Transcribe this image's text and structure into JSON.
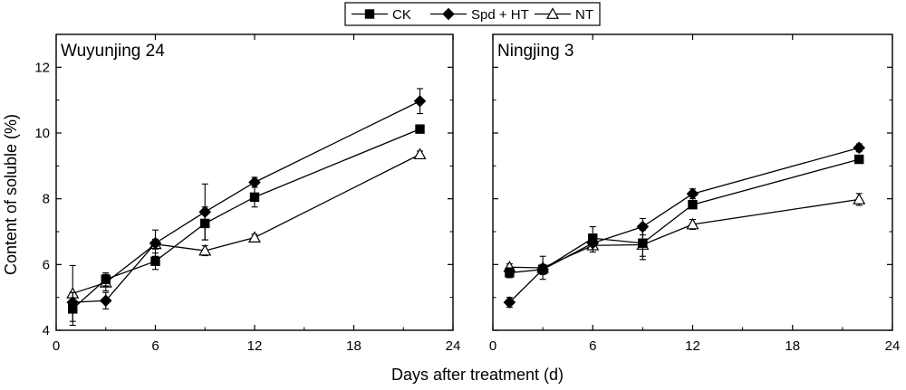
{
  "chart_data": {
    "type": "line",
    "ylabel": "Content of soluble (%)",
    "xlabel": "Days after treatment (d)",
    "xlim": [
      0,
      24
    ],
    "ylim": [
      4,
      13
    ],
    "x_ticks": [
      0,
      6,
      12,
      18,
      24
    ],
    "y_ticks": [
      4,
      6,
      8,
      10,
      12
    ],
    "grid": false,
    "legend": {
      "position": "top-center",
      "entries": [
        {
          "name": "CK",
          "marker": "filled-square"
        },
        {
          "name": "Spd + HT",
          "marker": "filled-diamond"
        },
        {
          "name": "NT",
          "marker": "open-triangle"
        }
      ]
    },
    "panels": [
      {
        "title": "Wuyunjing 24",
        "series": [
          {
            "name": "CK",
            "marker": "filled-square",
            "x": [
              1,
              3,
              6,
              9,
              12,
              22
            ],
            "y": [
              4.65,
              5.55,
              6.1,
              7.25,
              8.05,
              10.12
            ],
            "err": [
              0.5,
              0.2,
              0.25,
              0.5,
              0.3,
              0.1
            ]
          },
          {
            "name": "Spd + HT",
            "marker": "filled-diamond",
            "x": [
              1,
              3,
              6,
              9,
              12,
              22
            ],
            "y": [
              4.85,
              4.9,
              6.65,
              7.6,
              8.5,
              10.97
            ],
            "err": [
              0.3,
              0.25,
              0.4,
              0.85,
              0.15,
              0.38
            ]
          },
          {
            "name": "NT",
            "marker": "open-triangle",
            "x": [
              1,
              3,
              6,
              9,
              12,
              22
            ],
            "y": [
              5.12,
              5.45,
              6.62,
              6.42,
              6.82,
              9.35
            ],
            "err": [
              0.85,
              0.25,
              0.15,
              0.15,
              0.1,
              0.1
            ]
          }
        ]
      },
      {
        "title": "Ningjing 3",
        "series": [
          {
            "name": "CK",
            "marker": "filled-square",
            "x": [
              1,
              3,
              6,
              9,
              12,
              22
            ],
            "y": [
              5.75,
              5.85,
              6.8,
              6.65,
              7.82,
              9.2
            ],
            "err": [
              0.15,
              0.15,
              0.35,
              0.4,
              0.1,
              0.1
            ]
          },
          {
            "name": "Spd + HT",
            "marker": "filled-diamond",
            "x": [
              1,
              3,
              6,
              9,
              12,
              22
            ],
            "y": [
              4.85,
              5.85,
              6.65,
              7.15,
              8.15,
              9.55
            ],
            "err": [
              0.15,
              0.15,
              0.2,
              0.25,
              0.15,
              0.12
            ]
          },
          {
            "name": "NT",
            "marker": "open-triangle",
            "x": [
              1,
              3,
              6,
              9,
              12,
              22
            ],
            "y": [
              5.92,
              5.9,
              6.58,
              6.6,
              7.22,
              7.98
            ],
            "err": [
              0.1,
              0.35,
              0.2,
              0.45,
              0.15,
              0.18
            ]
          }
        ]
      }
    ]
  }
}
